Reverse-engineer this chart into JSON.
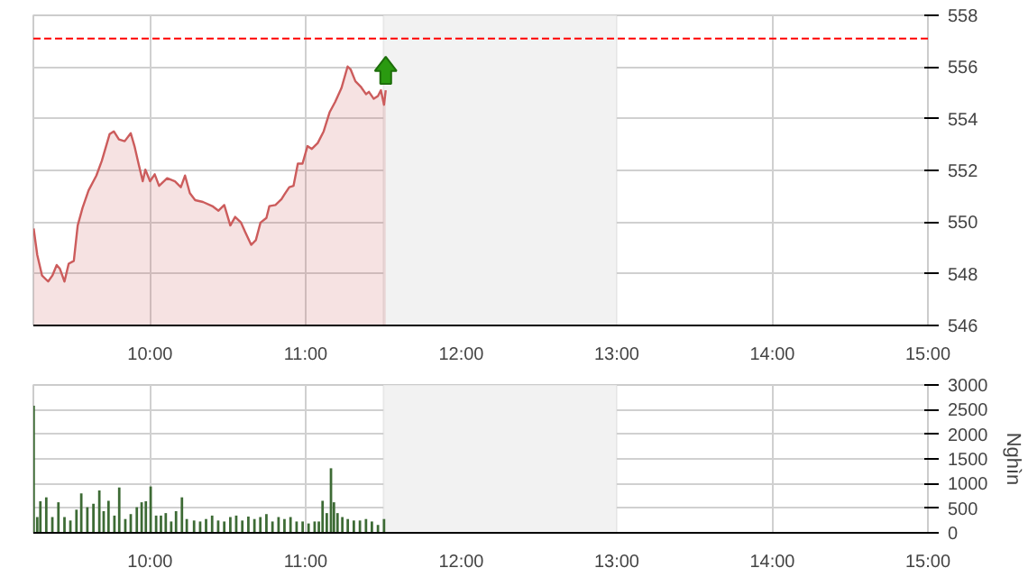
{
  "chart_data": [
    {
      "type": "area",
      "x": [
        9.252,
        9.275,
        9.306,
        9.345,
        9.372,
        9.4,
        9.42,
        9.45,
        9.477,
        9.51,
        9.535,
        9.566,
        9.605,
        9.655,
        9.69,
        9.74,
        9.767,
        9.8,
        9.837,
        9.876,
        9.9,
        9.926,
        9.953,
        9.97,
        10.0,
        10.03,
        10.058,
        10.11,
        10.16,
        10.198,
        10.225,
        10.256,
        10.29,
        10.34,
        10.4,
        10.44,
        10.477,
        10.516,
        10.547,
        10.585,
        10.61,
        10.65,
        10.68,
        10.71,
        10.748,
        10.767,
        10.806,
        10.845,
        10.864,
        10.895,
        10.922,
        10.95,
        10.98,
        11.012,
        11.04,
        11.078,
        11.116,
        11.155,
        11.19,
        11.23,
        11.27,
        11.29,
        11.32,
        11.357,
        11.388,
        11.407,
        11.438,
        11.465,
        11.484,
        11.504,
        11.515
      ],
      "series": [
        {
          "color": "#cc5c5c",
          "values": [
            549.75,
            548.73,
            547.93,
            547.7,
            547.93,
            548.34,
            548.2,
            547.7,
            548.39,
            548.5,
            549.87,
            550.55,
            551.23,
            551.8,
            552.37,
            553.4,
            553.51,
            553.2,
            553.13,
            553.44,
            552.94,
            552.26,
            551.58,
            552.03,
            551.58,
            551.85,
            551.4,
            551.7,
            551.58,
            551.35,
            551.8,
            551.12,
            550.85,
            550.78,
            550.62,
            550.44,
            550.66,
            549.87,
            550.2,
            549.98,
            549.64,
            549.12,
            549.3,
            549.98,
            550.16,
            550.62,
            550.66,
            550.89,
            551.07,
            551.35,
            551.4,
            552.26,
            552.26,
            552.94,
            552.83,
            553.06,
            553.51,
            554.26,
            554.65,
            555.18,
            556.02,
            555.9,
            555.45,
            555.22,
            554.95,
            555.04,
            554.77,
            554.88,
            555.1,
            554.54,
            555.1
          ]
        }
      ],
      "xlim": [
        9.25,
        15
      ],
      "xticks": [
        {
          "value": 10,
          "label": "10:00"
        },
        {
          "value": 11,
          "label": "11:00"
        },
        {
          "value": 12,
          "label": "12:00"
        },
        {
          "value": 13,
          "label": "13:00"
        },
        {
          "value": 14,
          "label": "14:00"
        },
        {
          "value": 15,
          "label": "15:00"
        }
      ],
      "ylim": [
        546,
        558
      ],
      "yticks": [
        546,
        548,
        550,
        552,
        554,
        556,
        558
      ],
      "ref_lines": [
        {
          "axis": "y",
          "value": 557.1,
          "color": "#ff0000",
          "line_style": "dashed"
        }
      ],
      "bands": [
        {
          "axis": "x",
          "from": 11.5,
          "to": 13,
          "color": "#f2f2f2"
        }
      ],
      "grid": true
    },
    {
      "type": "bar",
      "x": [
        9.252,
        9.275,
        9.295,
        9.333,
        9.372,
        9.411,
        9.45,
        9.488,
        9.527,
        9.558,
        9.597,
        9.636,
        9.674,
        9.702,
        9.733,
        9.771,
        9.802,
        9.841,
        9.876,
        9.915,
        9.946,
        9.973,
        10.004,
        10.039,
        10.07,
        10.101,
        10.136,
        10.167,
        10.205,
        10.236,
        10.283,
        10.322,
        10.36,
        10.399,
        10.438,
        10.477,
        10.516,
        10.554,
        10.593,
        10.632,
        10.671,
        10.709,
        10.748,
        10.787,
        10.826,
        10.864,
        10.903,
        10.942,
        10.981,
        11.019,
        11.058,
        11.085,
        11.109,
        11.136,
        11.163,
        11.182,
        11.205,
        11.236,
        11.271,
        11.31,
        11.349,
        11.388,
        11.426,
        11.465,
        11.504
      ],
      "series": [
        {
          "color": "#3d6b35",
          "values": [
            2580,
            320,
            640,
            720,
            320,
            620,
            320,
            250,
            470,
            800,
            520,
            590,
            860,
            440,
            650,
            350,
            920,
            280,
            380,
            520,
            620,
            640,
            940,
            350,
            350,
            400,
            230,
            440,
            720,
            280,
            250,
            230,
            280,
            350,
            250,
            230,
            320,
            350,
            250,
            330,
            280,
            320,
            380,
            230,
            320,
            280,
            320,
            230,
            230,
            190,
            230,
            230,
            650,
            400,
            1310,
            620,
            400,
            320,
            280,
            250,
            250,
            280,
            230,
            160,
            280
          ]
        }
      ],
      "xlim": [
        9.25,
        15
      ],
      "xticks": [
        {
          "value": 10,
          "label": "10:00"
        },
        {
          "value": 11,
          "label": "11:00"
        },
        {
          "value": 12,
          "label": "12:00"
        },
        {
          "value": 13,
          "label": "13:00"
        },
        {
          "value": 14,
          "label": "14:00"
        },
        {
          "value": 15,
          "label": "15:00"
        }
      ],
      "ylim": [
        0,
        3000
      ],
      "yticks": [
        0,
        500,
        1000,
        1500,
        2000,
        2500,
        3000
      ],
      "ylabel": "Nghìn",
      "bands": [
        {
          "axis": "x",
          "from": 11.5,
          "to": 13,
          "color": "#f2f2f2"
        }
      ],
      "grid": true
    }
  ]
}
